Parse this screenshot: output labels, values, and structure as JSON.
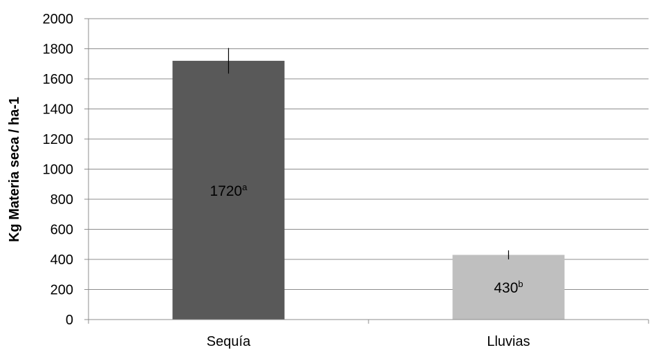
{
  "chart_data": {
    "type": "bar",
    "categories": [
      "Sequía",
      "Lluvias"
    ],
    "values": [
      1720,
      430
    ],
    "errors": [
      85,
      30
    ],
    "data_labels": [
      {
        "value": "1720",
        "sup": "a"
      },
      {
        "value": "430",
        "sup": "b"
      }
    ],
    "bar_colors": [
      "#595959",
      "#bfbfbf"
    ],
    "title": "",
    "xlabel": "",
    "ylabel": "Kg Materia seca / ha-1",
    "ylim": [
      0,
      2000
    ],
    "ytick_step": 200,
    "grid": true,
    "grid_color": "#8c8c8c",
    "legend": "none"
  }
}
